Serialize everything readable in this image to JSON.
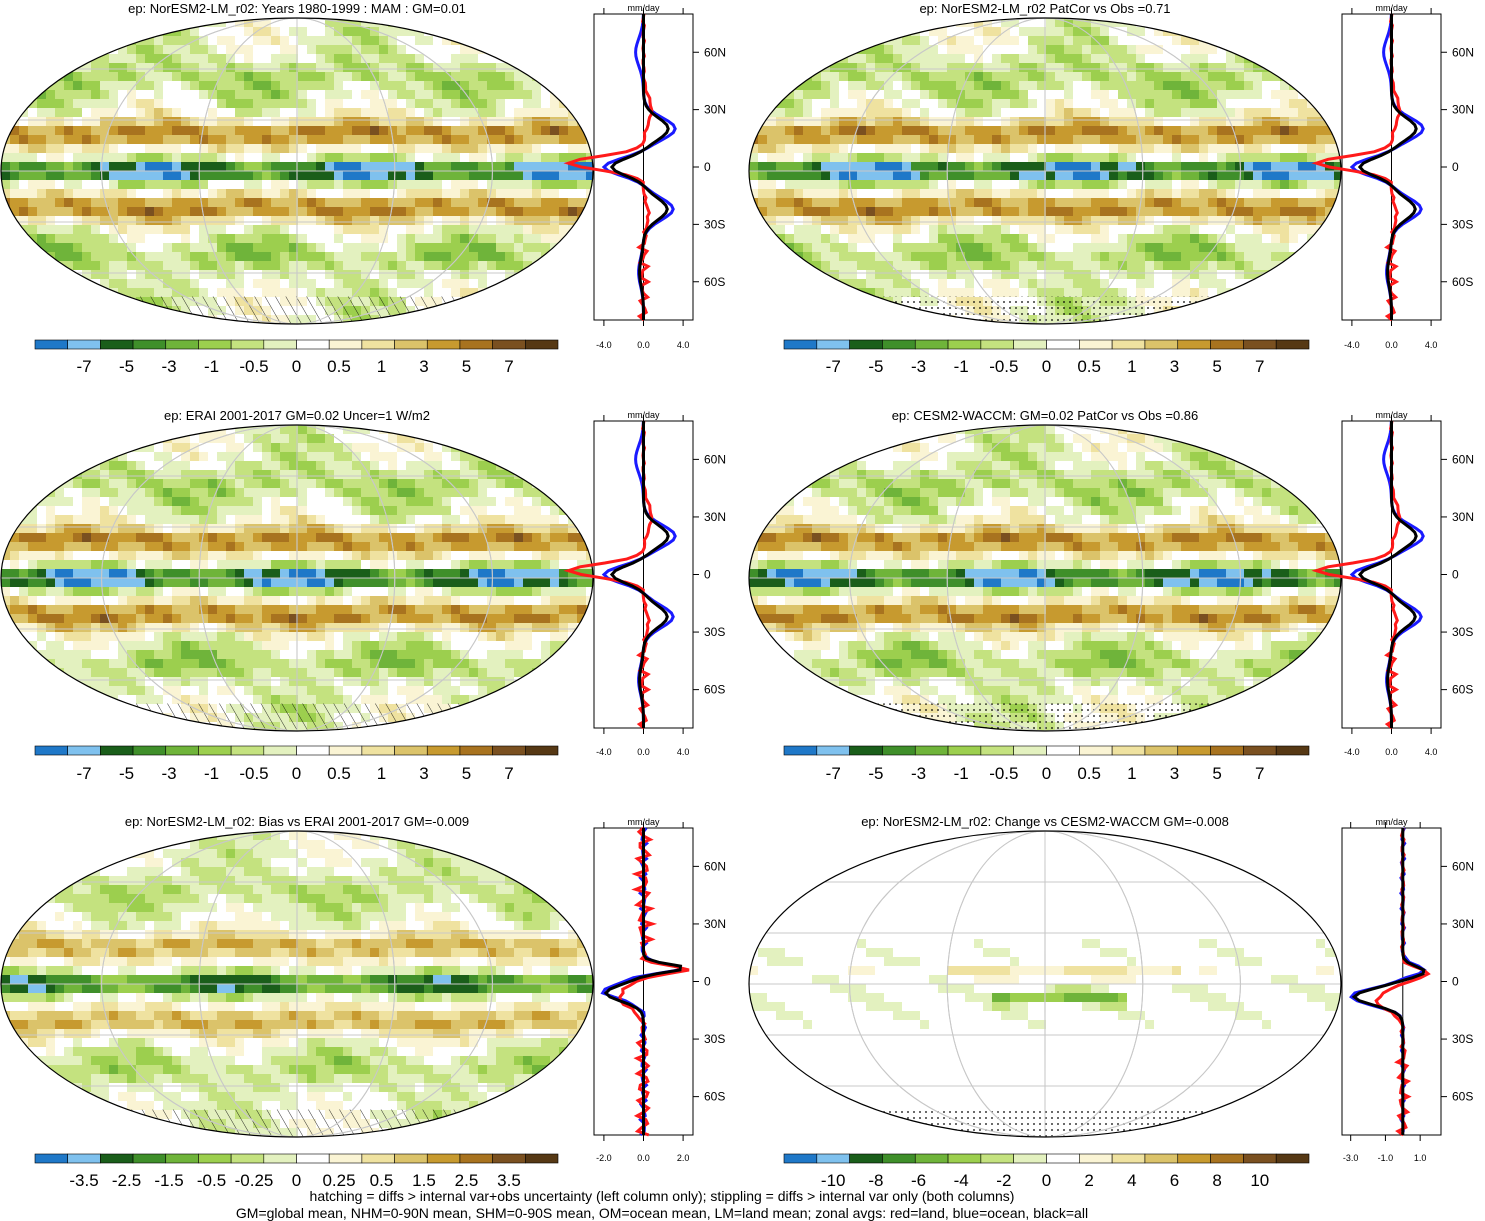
{
  "footer": {
    "line1": "hatching = diffs > internal var+obs uncertainty (left column only); stippling = diffs > internal var only (both columns)",
    "line2": "GM=global mean, NHM=0-90N mean, SHM=0-90S mean, OM=ocean mean, LM=land mean; zonal avgs: red=land, blue=ocean, black=all"
  },
  "colors": {
    "palette": [
      "#1f78c8",
      "#7fc1ee",
      "#1a5e1a",
      "#3f8f2a",
      "#6fb43a",
      "#9ccf4e",
      "#c4e27f",
      "#e3f1bf",
      "#ffffff",
      "#faf4d4",
      "#efe2a0",
      "#dbc36a",
      "#c79a2f",
      "#a8731f",
      "#7a5020",
      "#563814"
    ],
    "land_zonal": "#ff1a1a",
    "ocean_zonal": "#1a1aff",
    "all_zonal": "#000000"
  },
  "chart_data": [
    {
      "type": "heatmap",
      "title": "ep: NorESM2-LM_r02: Years 1980-1999 : MAM : GM=0.01",
      "colorbar_labels": [
        "-7",
        "-5",
        "-3",
        "-1",
        "-0.5",
        "0",
        "0.5",
        "1",
        "3",
        "5",
        "7"
      ],
      "zonal_panel": {
        "type": "line",
        "unit": "mm/day",
        "x_ticks": [
          "-4.0",
          "0.0",
          "4.0"
        ],
        "xlim": [
          -5,
          5
        ],
        "y_ticks": [
          "60N",
          "30N",
          "0",
          "30S",
          "60S"
        ],
        "series": [
          {
            "color": "ocean",
            "x": [
              -6.2,
              -3.5,
              2.0,
              1.6,
              0.4,
              0.2,
              0.1,
              0.0
            ],
            "lat": [
              0,
              -5,
              -20,
              -30,
              -40,
              -50,
              -60,
              -75
            ]
          }
        ]
      }
    },
    {
      "type": "heatmap",
      "title": "ep: NorESM2-LM_r02 PatCor vs Obs =0.71",
      "colorbar_labels": [
        "-7",
        "-5",
        "-3",
        "-1",
        "-0.5",
        "0",
        "0.5",
        "1",
        "3",
        "5",
        "7"
      ],
      "zonal_panel": {
        "type": "line",
        "unit": "mm/day",
        "x_ticks": [
          "-4.0",
          "0.0",
          "4.0"
        ],
        "xlim": [
          -5,
          5
        ],
        "y_ticks": [
          "60N",
          "30N",
          "0",
          "30S",
          "60S"
        ]
      }
    },
    {
      "type": "heatmap",
      "title": "ep: ERAI 2001-2017 GM=0.02 Uncer=1 W/m2",
      "colorbar_labels": [
        "-7",
        "-5",
        "-3",
        "-1",
        "-0.5",
        "0",
        "0.5",
        "1",
        "3",
        "5",
        "7"
      ],
      "zonal_panel": {
        "type": "line",
        "unit": "mm/day",
        "x_ticks": [
          "-4.0",
          "0.0",
          "4.0"
        ],
        "xlim": [
          -5,
          5
        ],
        "y_ticks": [
          "60N",
          "30N",
          "0",
          "30S",
          "60S"
        ]
      }
    },
    {
      "type": "heatmap",
      "title": "ep: CESM2-WACCM: GM=0.02 PatCor vs Obs =0.86",
      "colorbar_labels": [
        "-7",
        "-5",
        "-3",
        "-1",
        "-0.5",
        "0",
        "0.5",
        "1",
        "3",
        "5",
        "7"
      ],
      "zonal_panel": {
        "type": "line",
        "unit": "mm/day",
        "x_ticks": [
          "-4.0",
          "0.0",
          "4.0"
        ],
        "xlim": [
          -5,
          5
        ],
        "y_ticks": [
          "60N",
          "30N",
          "0",
          "30S",
          "60S"
        ]
      }
    },
    {
      "type": "heatmap",
      "title": "ep: NorESM2-LM_r02: Bias vs ERAI 2001-2017 GM=-0.009",
      "colorbar_labels": [
        "-3.5",
        "-2.5",
        "-1.5",
        "-0.5",
        "-0.25",
        "0",
        "0.25",
        "0.5",
        "1.5",
        "2.5",
        "3.5"
      ],
      "zonal_panel": {
        "type": "line",
        "unit": "mm/day",
        "x_ticks": [
          "-2.0",
          "0.0",
          "2.0"
        ],
        "xlim": [
          -2.5,
          2.5
        ],
        "y_ticks": [
          "60N",
          "30N",
          "0",
          "30S",
          "60S"
        ]
      }
    },
    {
      "type": "heatmap",
      "title": "ep: NorESM2-LM_r02: Change vs CESM2-WACCM GM=-0.008",
      "colorbar_labels": [
        "-10",
        "-8",
        "-6",
        "-4",
        "-2",
        "0",
        "2",
        "4",
        "6",
        "8",
        "10"
      ],
      "zonal_panel": {
        "type": "line",
        "unit": "mm/day",
        "x_ticks": [
          "-3.0",
          "-1.0",
          "1.0"
        ],
        "xlim": [
          -3.5,
          2.2
        ],
        "y_ticks": [
          "60N",
          "30N",
          "0",
          "30S",
          "60S"
        ]
      }
    }
  ]
}
